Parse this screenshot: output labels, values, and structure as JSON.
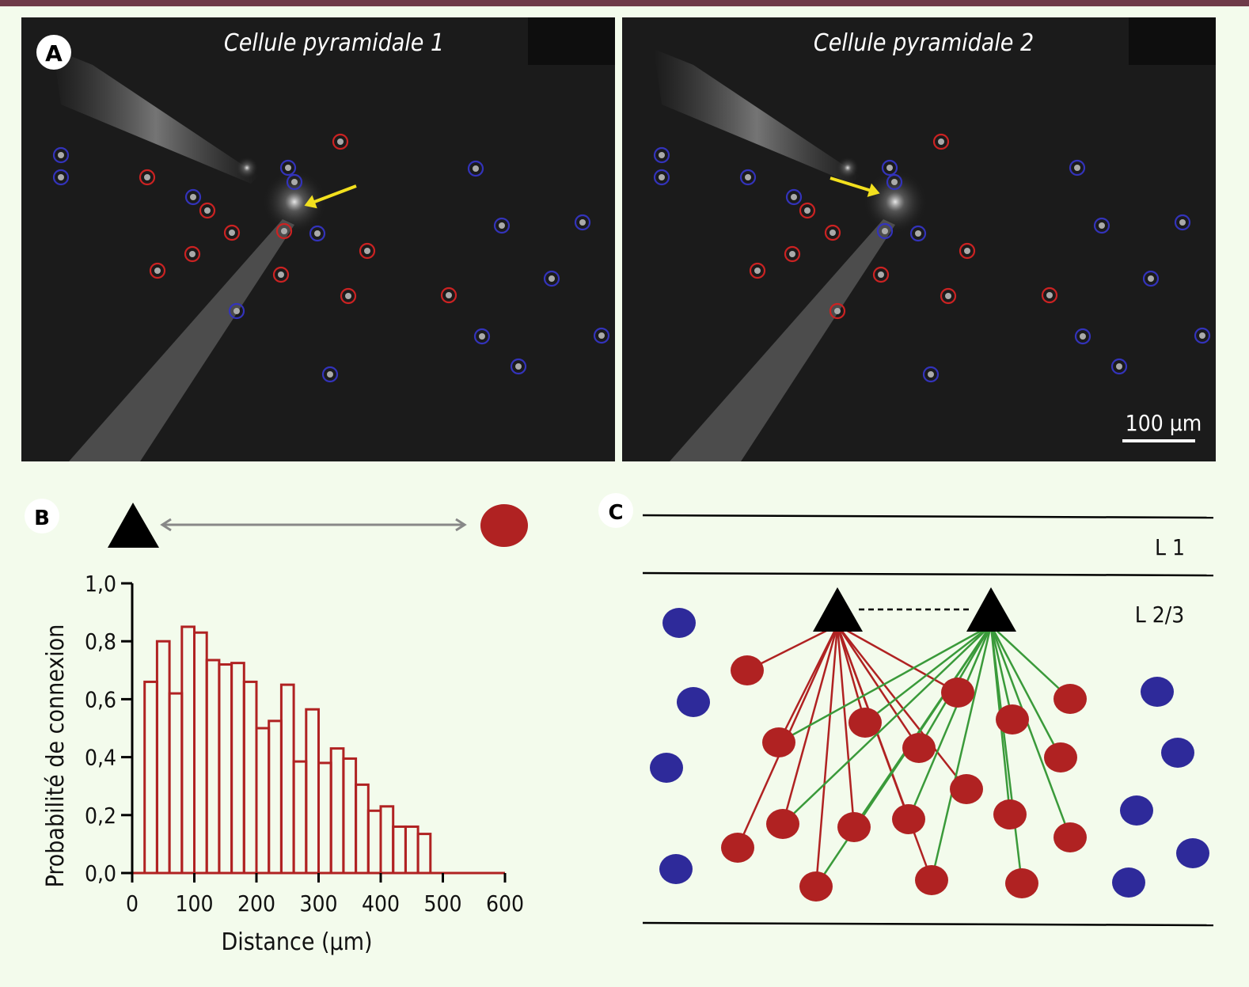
{
  "panel_a": {
    "label": "A",
    "image1_title": "Cellule pyramidale 1",
    "image2_title": "Cellule pyramidale 2",
    "scale_bar": "100 µm",
    "colors": {
      "connected": "#cc2222",
      "not_connected": "#3333bb",
      "arrow": "#f2e01e"
    }
  },
  "panel_b": {
    "label": "B",
    "colors": {
      "bars": "#b02222",
      "dot": "#b02222"
    }
  },
  "panel_c": {
    "label": "C",
    "layer1": "L 1",
    "layer23": "L 2/3",
    "colors": {
      "pyramidal": "#000000",
      "connected_cell": "#b02222",
      "other_cell": "#2e2a9a",
      "link_cell1": "#b02222",
      "link_cell2": "#3a9a3a"
    }
  },
  "chart_data": {
    "type": "bar",
    "title": "",
    "xlabel": "Distance (µm)",
    "ylabel": "Probabilité de connexion",
    "xlim": [
      0,
      600
    ],
    "ylim": [
      0,
      1.0
    ],
    "grid": false,
    "bin_width": 20,
    "x_ticks": [
      "0",
      "100",
      "200",
      "300",
      "400",
      "500",
      "600"
    ],
    "y_ticks": [
      "0,0",
      "0,2",
      "0,4",
      "0,6",
      "0,8",
      "1,0"
    ],
    "bin_starts": [
      20,
      40,
      60,
      80,
      100,
      120,
      140,
      160,
      180,
      200,
      220,
      240,
      260,
      280,
      300,
      320,
      340,
      360,
      380,
      400,
      420,
      440,
      460
    ],
    "values": [
      0.66,
      0.8,
      0.62,
      0.85,
      0.83,
      0.735,
      0.72,
      0.725,
      0.66,
      0.5,
      0.525,
      0.65,
      0.385,
      0.565,
      0.38,
      0.43,
      0.395,
      0.305,
      0.215,
      0.23,
      0.16,
      0.16,
      0.135
    ]
  }
}
